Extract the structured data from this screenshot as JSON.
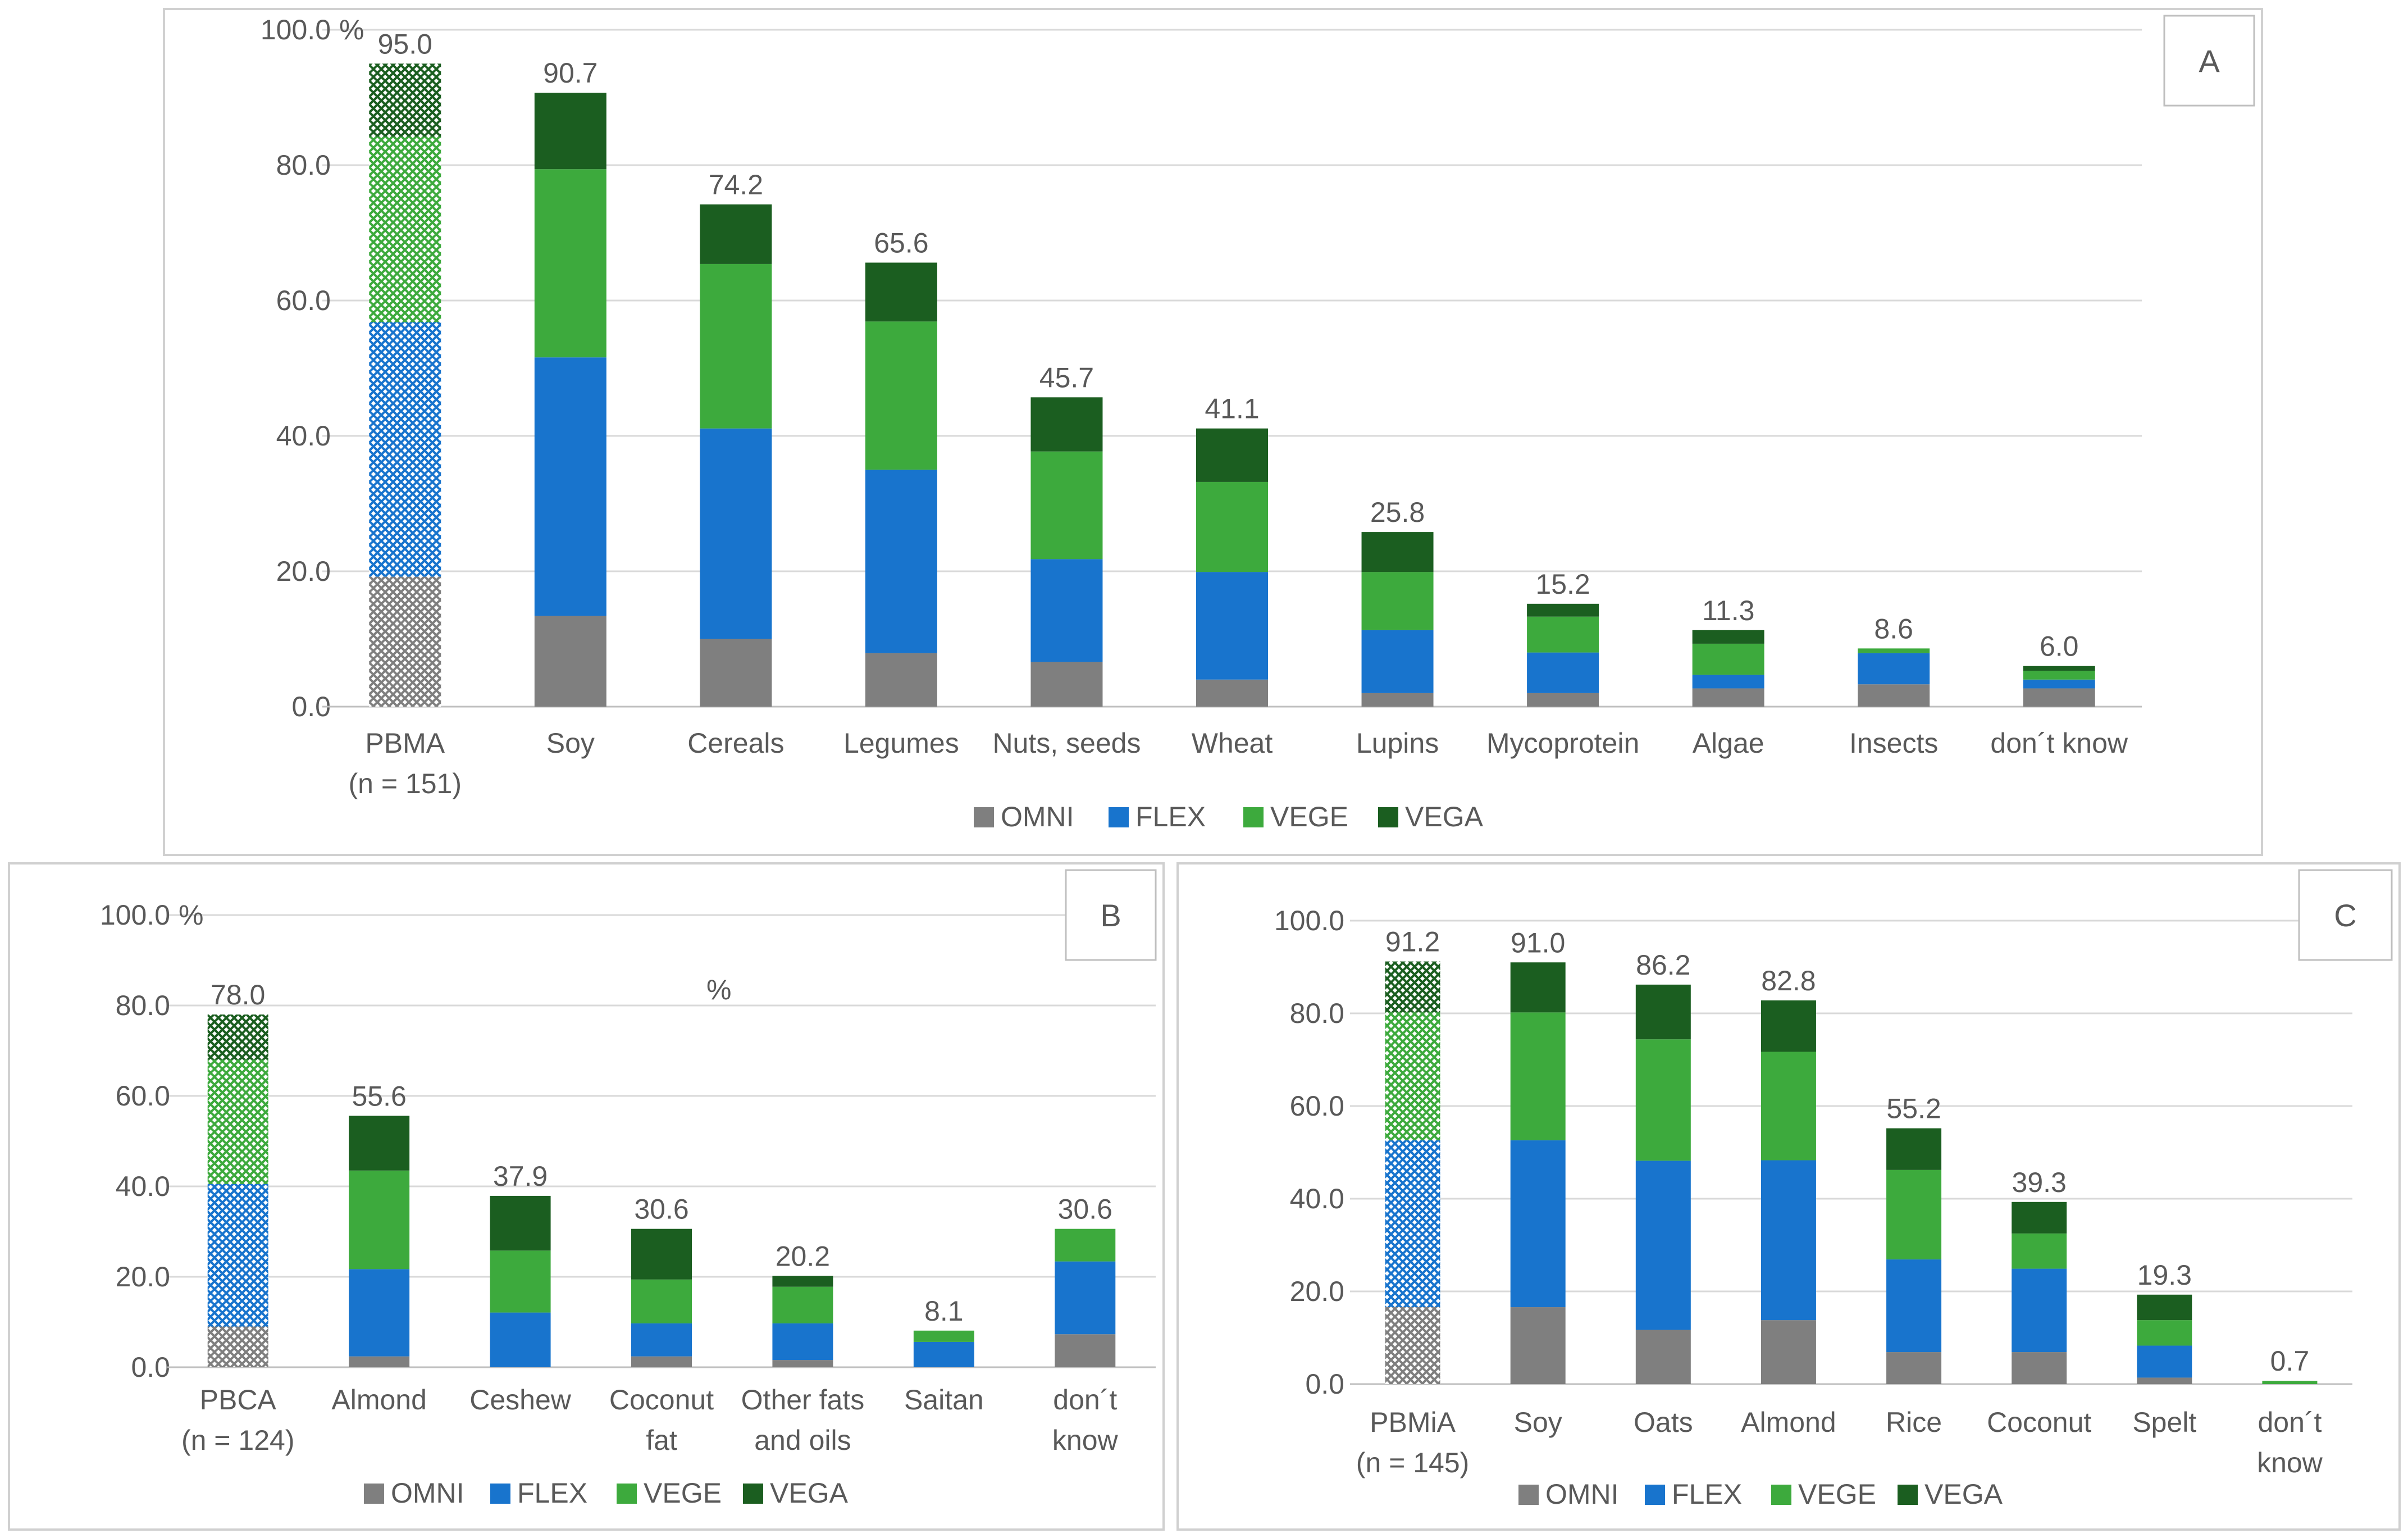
{
  "chart_data": [
    {
      "type": "bar",
      "stacked": true,
      "panel_label": "A",
      "y_max_label": "100.0",
      "unit_label": "%",
      "categories": [
        "PBMA\n(n = 151)",
        "Soy",
        "Cereals",
        "Legumes",
        "Nuts, seeds",
        "Wheat",
        "Lupins",
        "Mycoprotein",
        "Algae",
        "Insects",
        "don´t know"
      ],
      "totals": [
        "95.0",
        "90.7",
        "74.2",
        "65.6",
        "45.7",
        "41.1",
        "25.8",
        "15.2",
        "11.3",
        "8.6",
        "6.0"
      ],
      "hatched_first": true,
      "series": [
        {
          "name": "OMNI",
          "color": "#7f7f7f",
          "values": [
            19.2,
            13.4,
            10.0,
            7.9,
            6.6,
            4.0,
            2.0,
            2.0,
            2.7,
            3.3,
            2.7
          ]
        },
        {
          "name": "FLEX",
          "color": "#1874cd",
          "values": [
            37.6,
            38.2,
            31.1,
            27.1,
            15.2,
            15.9,
            9.3,
            6.0,
            2.0,
            4.6,
            1.3
          ]
        },
        {
          "name": "VEGE",
          "color": "#3daa3d",
          "values": [
            27.4,
            27.8,
            24.3,
            21.9,
            15.9,
            13.3,
            8.6,
            5.3,
            4.6,
            0.7,
            1.3
          ]
        },
        {
          "name": "VEGA",
          "color": "#1b5e20",
          "values": [
            10.8,
            11.3,
            8.8,
            8.7,
            8.0,
            7.9,
            5.9,
            1.9,
            2.0,
            0.0,
            0.7
          ]
        }
      ],
      "ylim": [
        0,
        100
      ],
      "yticks": [
        "0.0",
        "20.0",
        "40.0",
        "60.0",
        "80.0",
        "100.0"
      ],
      "legend": [
        "OMNI",
        "FLEX",
        "VEGE",
        "VEGA"
      ],
      "legend_position": "bottom"
    },
    {
      "type": "bar",
      "stacked": true,
      "panel_label": "B",
      "y_max_label": "100.0",
      "unit_label": "%",
      "annotation": "%",
      "categories": [
        "PBCA\n(n = 124)",
        "Almond",
        "Ceshew",
        "Coconut\nfat",
        "Other fats\nand oils",
        "Saitan",
        "don´t\nknow"
      ],
      "totals": [
        "78.0",
        "55.6",
        "37.9",
        "30.6",
        "20.2",
        "8.1",
        "30.6"
      ],
      "hatched_first": true,
      "series": [
        {
          "name": "OMNI",
          "color": "#7f7f7f",
          "values": [
            9.0,
            2.4,
            0.0,
            2.4,
            1.6,
            0.0,
            7.3
          ]
        },
        {
          "name": "FLEX",
          "color": "#1874cd",
          "values": [
            31.5,
            19.3,
            12.1,
            7.3,
            8.1,
            5.6,
            16.1
          ]
        },
        {
          "name": "VEGE",
          "color": "#3daa3d",
          "values": [
            27.5,
            21.8,
            13.7,
            9.7,
            8.1,
            2.5,
            7.2
          ]
        },
        {
          "name": "VEGA",
          "color": "#1b5e20",
          "values": [
            10.0,
            12.1,
            12.1,
            11.2,
            2.4,
            0.0,
            0.0
          ]
        }
      ],
      "ylim": [
        0,
        100
      ],
      "yticks": [
        "0.0",
        "20.0",
        "40.0",
        "60.0",
        "80.0",
        "100.0"
      ],
      "legend": [
        "OMNI",
        "FLEX",
        "VEGE",
        "VEGA"
      ],
      "legend_position": "bottom"
    },
    {
      "type": "bar",
      "stacked": true,
      "panel_label": "C",
      "y_max_label": "100.0",
      "unit_label": "",
      "categories": [
        "PBMiA\n(n = 145)",
        "Soy",
        "Oats",
        "Almond",
        "Rice",
        "Coconut",
        "Spelt",
        "don´t\nknow"
      ],
      "totals": [
        "91.2",
        "91.0",
        "86.2",
        "82.8",
        "55.2",
        "39.3",
        "19.3",
        "0.7"
      ],
      "hatched_first": true,
      "series": [
        {
          "name": "OMNI",
          "color": "#7f7f7f",
          "values": [
            16.6,
            16.6,
            11.7,
            13.8,
            6.9,
            6.9,
            1.4,
            0.0
          ]
        },
        {
          "name": "FLEX",
          "color": "#1874cd",
          "values": [
            36.0,
            36.0,
            36.5,
            34.5,
            20.0,
            18.0,
            6.9,
            0.0
          ]
        },
        {
          "name": "VEGE",
          "color": "#3daa3d",
          "values": [
            27.6,
            27.6,
            26.2,
            23.4,
            19.3,
            7.6,
            5.5,
            0.7
          ]
        },
        {
          "name": "VEGA",
          "color": "#1b5e20",
          "values": [
            11.0,
            10.8,
            11.8,
            11.1,
            9.0,
            6.8,
            5.5,
            0.0
          ]
        }
      ],
      "ylim": [
        0,
        100
      ],
      "yticks": [
        "0.0",
        "20.0",
        "40.0",
        "60.0",
        "80.0",
        "100.0"
      ],
      "legend": [
        "OMNI",
        "FLEX",
        "VEGE",
        "VEGA"
      ],
      "legend_position": "bottom"
    }
  ]
}
